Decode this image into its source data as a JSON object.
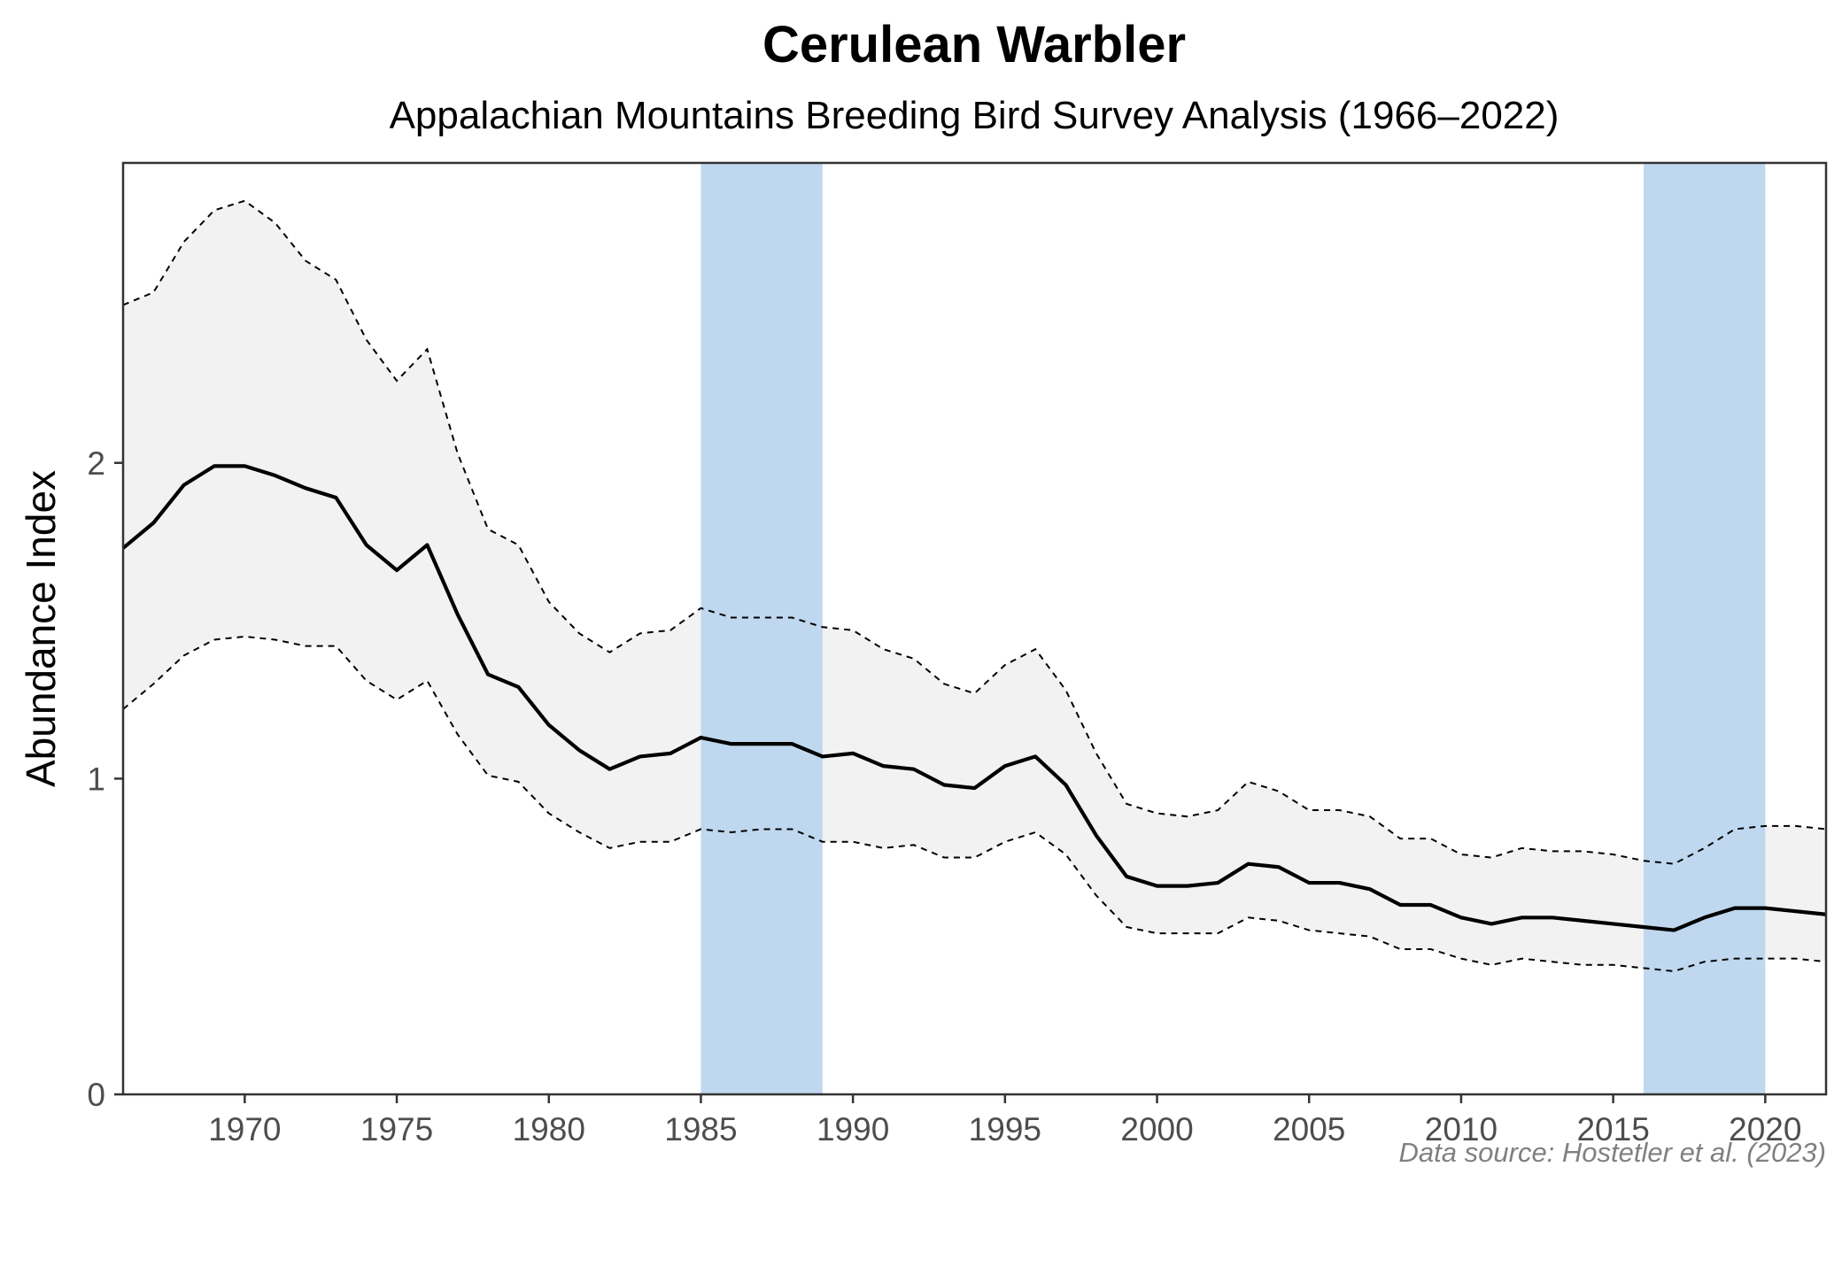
{
  "chart_data": {
    "type": "line",
    "title": "Cerulean Warbler",
    "subtitle": "Appalachian Mountains Breeding Bird Survey Analysis (1966–2022)",
    "xlabel": "",
    "ylabel": "Abundance Index",
    "caption": "Data source: Hostetler et al. (2023)",
    "xlim": [
      1966,
      2022
    ],
    "ylim": [
      0,
      2.95
    ],
    "x_ticks": [
      1970,
      1975,
      1980,
      1985,
      1990,
      1995,
      2000,
      2005,
      2010,
      2015,
      2020
    ],
    "x_tick_labels": [
      "1970",
      "1975",
      "1980",
      "1985",
      "1990",
      "1995",
      "2000",
      "2005",
      "2010",
      "2015",
      "2020"
    ],
    "y_ticks": [
      0,
      1,
      2
    ],
    "y_tick_labels": [
      "0",
      "1",
      "2"
    ],
    "grid": false,
    "highlight_periods": [
      {
        "start": 1985,
        "end": 1989
      },
      {
        "start": 2016,
        "end": 2020
      }
    ],
    "colors": {
      "highlight": "#bdd7ee",
      "ribbon": "#f2f2f2",
      "line": "#000000",
      "bounds": "#000000",
      "axis": "#333333"
    },
    "x": [
      1966,
      1967,
      1968,
      1969,
      1970,
      1971,
      1972,
      1973,
      1974,
      1975,
      1976,
      1977,
      1978,
      1979,
      1980,
      1981,
      1982,
      1983,
      1984,
      1985,
      1986,
      1987,
      1988,
      1989,
      1990,
      1991,
      1992,
      1993,
      1994,
      1995,
      1996,
      1997,
      1998,
      1999,
      2000,
      2001,
      2002,
      2003,
      2004,
      2005,
      2006,
      2007,
      2008,
      2009,
      2010,
      2011,
      2012,
      2013,
      2014,
      2015,
      2016,
      2017,
      2018,
      2019,
      2020,
      2021,
      2022
    ],
    "series": [
      {
        "name": "Abundance Index",
        "values": [
          1.73,
          1.81,
          1.93,
          1.99,
          1.99,
          1.96,
          1.92,
          1.89,
          1.74,
          1.66,
          1.74,
          1.52,
          1.33,
          1.29,
          1.17,
          1.09,
          1.03,
          1.07,
          1.08,
          1.13,
          1.11,
          1.11,
          1.11,
          1.07,
          1.08,
          1.04,
          1.03,
          0.98,
          0.97,
          1.04,
          1.07,
          0.98,
          0.82,
          0.69,
          0.66,
          0.66,
          0.67,
          0.73,
          0.72,
          0.67,
          0.67,
          0.65,
          0.6,
          0.6,
          0.56,
          0.54,
          0.56,
          0.56,
          0.55,
          0.54,
          0.53,
          0.52,
          0.56,
          0.59,
          0.59,
          0.58,
          0.57
        ]
      },
      {
        "name": "Upper 95% CI",
        "values": [
          2.5,
          2.54,
          2.7,
          2.8,
          2.83,
          2.76,
          2.64,
          2.58,
          2.39,
          2.26,
          2.36,
          2.03,
          1.79,
          1.74,
          1.56,
          1.46,
          1.4,
          1.46,
          1.47,
          1.54,
          1.51,
          1.51,
          1.51,
          1.48,
          1.47,
          1.41,
          1.38,
          1.3,
          1.27,
          1.36,
          1.41,
          1.28,
          1.08,
          0.92,
          0.89,
          0.88,
          0.9,
          0.99,
          0.96,
          0.9,
          0.9,
          0.88,
          0.81,
          0.81,
          0.76,
          0.75,
          0.78,
          0.77,
          0.77,
          0.76,
          0.74,
          0.73,
          0.78,
          0.84,
          0.85,
          0.85,
          0.84
        ]
      },
      {
        "name": "Lower 95% CI",
        "values": [
          1.22,
          1.3,
          1.39,
          1.44,
          1.45,
          1.44,
          1.42,
          1.42,
          1.31,
          1.25,
          1.31,
          1.14,
          1.01,
          0.99,
          0.89,
          0.83,
          0.78,
          0.8,
          0.8,
          0.84,
          0.83,
          0.84,
          0.84,
          0.8,
          0.8,
          0.78,
          0.79,
          0.75,
          0.75,
          0.8,
          0.83,
          0.76,
          0.63,
          0.53,
          0.51,
          0.51,
          0.51,
          0.56,
          0.55,
          0.52,
          0.51,
          0.5,
          0.46,
          0.46,
          0.43,
          0.41,
          0.43,
          0.42,
          0.41,
          0.41,
          0.4,
          0.39,
          0.42,
          0.43,
          0.43,
          0.43,
          0.42
        ]
      }
    ]
  }
}
